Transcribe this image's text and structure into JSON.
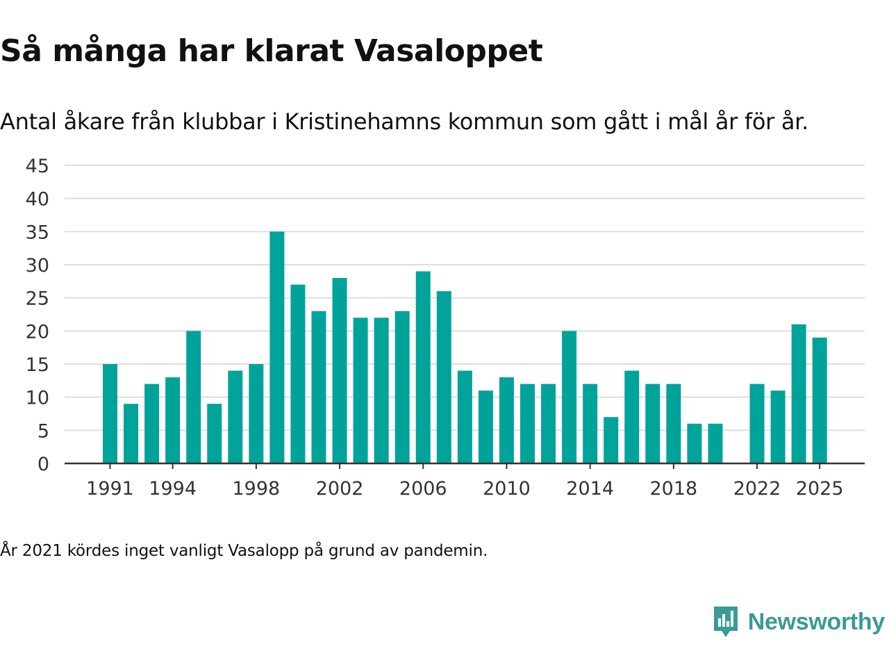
{
  "title": "Så många har klarat Vasaloppet",
  "subtitle": "Antal åkare från klubbar i Kristinehamns kommun som gått i mål år för år.",
  "footnote": "År 2021 kördes inget vanligt Vasalopp på grund av pandemin.",
  "brand": {
    "name": "Newsworthy",
    "color": "#3a9a96"
  },
  "colors": {
    "bar": "#00a39a",
    "grid": "#dddddd",
    "axis": "#333333",
    "tick_text": "#333333"
  },
  "chart_data": {
    "type": "bar",
    "title": "Så många har klarat Vasaloppet",
    "xlabel": "",
    "ylabel": "",
    "ylim": [
      0,
      45
    ],
    "yticks": [
      0,
      5,
      10,
      15,
      20,
      25,
      30,
      35,
      40,
      45
    ],
    "xticks": [
      1991,
      1994,
      1998,
      2002,
      2006,
      2010,
      2014,
      2018,
      2022,
      2025
    ],
    "grid": true,
    "categories": [
      1991,
      1992,
      1993,
      1994,
      1995,
      1996,
      1997,
      1998,
      1999,
      2000,
      2001,
      2002,
      2003,
      2004,
      2005,
      2006,
      2007,
      2008,
      2009,
      2010,
      2011,
      2012,
      2013,
      2014,
      2015,
      2016,
      2017,
      2018,
      2019,
      2020,
      2021,
      2022,
      2023,
      2024,
      2025
    ],
    "values": [
      15,
      9,
      12,
      13,
      20,
      9,
      14,
      15,
      35,
      27,
      23,
      28,
      22,
      22,
      23,
      29,
      26,
      14,
      11,
      13,
      12,
      12,
      20,
      12,
      7,
      14,
      12,
      12,
      6,
      6,
      null,
      12,
      11,
      21,
      19
    ]
  }
}
